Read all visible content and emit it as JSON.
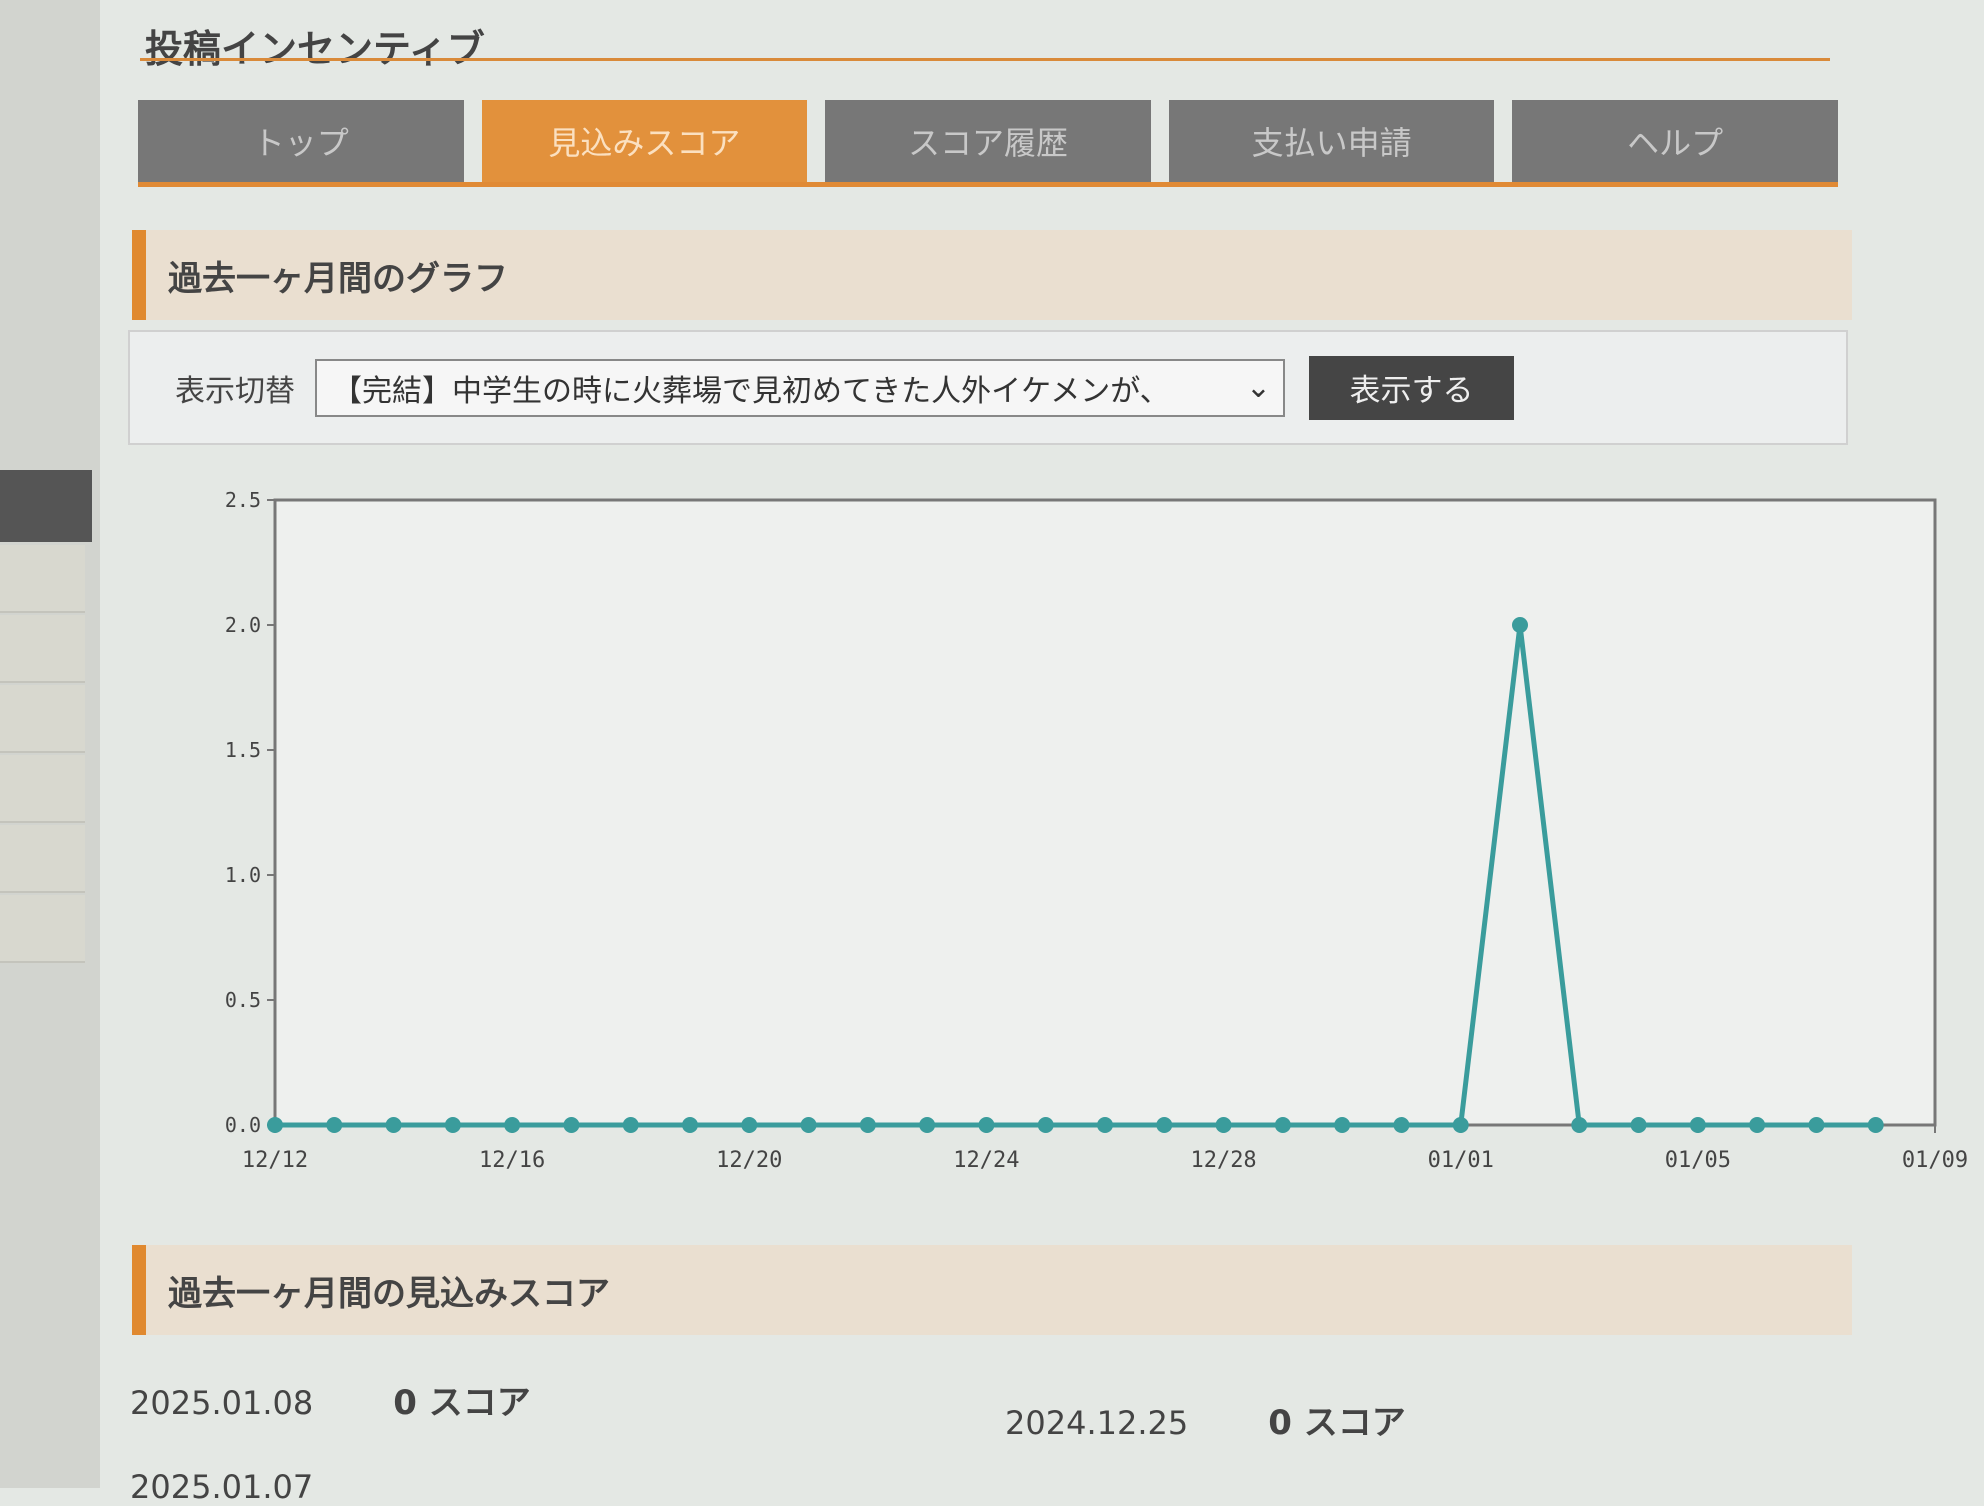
{
  "page": {
    "title": "投稿インセンティブ"
  },
  "tabs": [
    {
      "label": "トップ",
      "active": false
    },
    {
      "label": "見込みスコア",
      "active": true
    },
    {
      "label": "スコア履歴",
      "active": false
    },
    {
      "label": "支払い申請",
      "active": false
    },
    {
      "label": "ヘルプ",
      "active": false
    }
  ],
  "graph_section": {
    "heading": "過去一ヶ月間のグラフ",
    "filter_label": "表示切替",
    "selected_work": "【完結】中学生の時に火葬場で見初めてきた人外イケメンが、",
    "submit_label": "表示する"
  },
  "chart_data": {
    "type": "line",
    "color": "#3a9c9c",
    "x": [
      "12/12",
      "12/13",
      "12/14",
      "12/15",
      "12/16",
      "12/17",
      "12/18",
      "12/19",
      "12/20",
      "12/21",
      "12/22",
      "12/23",
      "12/24",
      "12/25",
      "12/26",
      "12/27",
      "12/28",
      "12/29",
      "12/30",
      "12/31",
      "01/01",
      "01/02",
      "01/03",
      "01/04",
      "01/05",
      "01/06",
      "01/07",
      "01/08"
    ],
    "values": [
      0,
      0,
      0,
      0,
      0,
      0,
      0,
      0,
      0,
      0,
      0,
      0,
      0,
      0,
      0,
      0,
      0,
      0,
      0,
      0,
      0,
      2,
      0,
      0,
      0,
      0,
      0,
      0
    ],
    "x_ticks": [
      "12/12",
      "12/16",
      "12/20",
      "12/24",
      "12/28",
      "01/01",
      "01/05",
      "01/09"
    ],
    "y_ticks": [
      "0.0",
      "0.5",
      "1.0",
      "1.5",
      "2.0",
      "2.5"
    ],
    "ylim": [
      0,
      2.5
    ]
  },
  "score_section": {
    "heading": "過去一ヶ月間の見込みスコア",
    "rows": [
      {
        "date": "2025.01.08",
        "score": "0 スコア"
      },
      {
        "date": "2024.12.25",
        "score": "0 スコア"
      },
      {
        "date": "2025.01.07",
        "score": ""
      }
    ]
  }
}
